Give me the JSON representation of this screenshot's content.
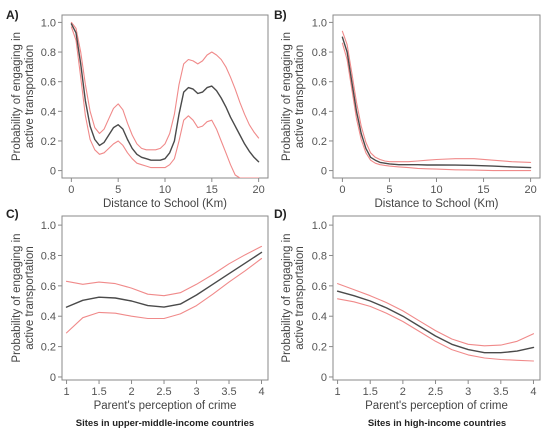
{
  "chart_data": [
    {
      "panel": "A)",
      "type": "line",
      "xlabel": "Distance to School (Km)",
      "ylabel": "Probability of engaging in active transportation",
      "ylabel_lines": [
        "Probability of engaging in",
        "active transportation"
      ],
      "xlim": [
        -1,
        21
      ],
      "ylim": [
        -0.05,
        1.05
      ],
      "xticks": [
        0,
        5,
        10,
        15,
        20
      ],
      "yticks": [
        0,
        0.2,
        0.4,
        0.6,
        0.8,
        1.0
      ],
      "ytick_labels": [
        "0",
        "0.2",
        "0.4",
        "0.6",
        "0.8",
        "1.0"
      ],
      "caption": "",
      "grid": false,
      "series": [
        {
          "role": "estimate",
          "color": "#4a4a4a",
          "x": [
            0,
            0.5,
            1,
            1.5,
            2,
            2.5,
            3,
            3.5,
            4,
            4.5,
            5,
            5.5,
            6,
            6.5,
            7,
            7.5,
            8,
            8.5,
            9,
            9.5,
            10,
            10.5,
            11,
            11.5,
            12,
            12.5,
            13,
            13.5,
            14,
            14.5,
            15,
            15.5,
            16,
            16.5,
            17,
            17.5,
            18,
            18.5,
            19,
            19.5,
            20
          ],
          "y": [
            0.99,
            0.93,
            0.72,
            0.47,
            0.3,
            0.21,
            0.17,
            0.19,
            0.24,
            0.29,
            0.31,
            0.28,
            0.21,
            0.15,
            0.11,
            0.09,
            0.08,
            0.07,
            0.07,
            0.07,
            0.08,
            0.12,
            0.2,
            0.38,
            0.53,
            0.56,
            0.55,
            0.52,
            0.53,
            0.56,
            0.57,
            0.54,
            0.49,
            0.43,
            0.36,
            0.3,
            0.24,
            0.18,
            0.13,
            0.09,
            0.06
          ]
        },
        {
          "role": "ci-upper",
          "color": "#f08a8a",
          "x": [
            0,
            0.5,
            1,
            1.5,
            2,
            2.5,
            3,
            3.5,
            4,
            4.5,
            5,
            5.5,
            6,
            6.5,
            7,
            7.5,
            8,
            8.5,
            9,
            9.5,
            10,
            10.5,
            11,
            11.5,
            12,
            12.5,
            13,
            13.5,
            14,
            14.5,
            15,
            15.5,
            16,
            16.5,
            17,
            17.5,
            18,
            18.5,
            19,
            19.5,
            20
          ],
          "y": [
            1.0,
            0.96,
            0.8,
            0.58,
            0.4,
            0.29,
            0.25,
            0.28,
            0.35,
            0.42,
            0.45,
            0.41,
            0.32,
            0.24,
            0.18,
            0.15,
            0.14,
            0.14,
            0.14,
            0.15,
            0.18,
            0.25,
            0.38,
            0.58,
            0.72,
            0.75,
            0.74,
            0.72,
            0.74,
            0.78,
            0.8,
            0.78,
            0.75,
            0.7,
            0.63,
            0.55,
            0.46,
            0.38,
            0.31,
            0.26,
            0.22
          ]
        },
        {
          "role": "ci-lower",
          "color": "#f08a8a",
          "x": [
            0,
            0.5,
            1,
            1.5,
            2,
            2.5,
            3,
            3.5,
            4,
            4.5,
            5,
            5.5,
            6,
            6.5,
            7,
            7.5,
            8,
            8.5,
            9,
            9.5,
            10,
            10.5,
            11,
            11.5,
            12,
            12.5,
            13,
            13.5,
            14,
            14.5,
            15,
            15.5,
            16,
            16.5,
            17,
            17.5,
            18,
            18.5,
            19,
            19.5,
            20
          ],
          "y": [
            0.97,
            0.88,
            0.63,
            0.37,
            0.21,
            0.14,
            0.11,
            0.12,
            0.15,
            0.18,
            0.2,
            0.17,
            0.12,
            0.08,
            0.05,
            0.04,
            0.03,
            0.02,
            0.02,
            0.02,
            0.02,
            0.04,
            0.08,
            0.2,
            0.34,
            0.37,
            0.34,
            0.29,
            0.3,
            0.33,
            0.34,
            0.28,
            0.2,
            0.12,
            0.04,
            -0.03,
            -0.05,
            -0.05,
            -0.05,
            -0.05,
            -0.05
          ]
        }
      ]
    },
    {
      "panel": "B)",
      "type": "line",
      "xlabel": "Distance to School (Km)",
      "ylabel": "Probability of engaging in active transportation",
      "ylabel_lines": [
        "Probability of engaging in",
        "active transportation"
      ],
      "xlim": [
        -1,
        21
      ],
      "ylim": [
        -0.05,
        1.05
      ],
      "xticks": [
        0,
        5,
        10,
        15,
        20
      ],
      "yticks": [
        0,
        0.2,
        0.4,
        0.6,
        0.8,
        1.0
      ],
      "ytick_labels": [
        "0",
        "0.2",
        "0.4",
        "0.6",
        "0.8",
        "1.0"
      ],
      "caption": "",
      "grid": false,
      "series": [
        {
          "role": "estimate",
          "color": "#4a4a4a",
          "x": [
            0,
            0.5,
            1,
            1.5,
            2,
            2.5,
            3,
            3.5,
            4,
            4.5,
            5,
            6,
            7,
            8,
            9,
            10,
            12,
            14,
            16,
            18,
            20
          ],
          "y": [
            0.9,
            0.8,
            0.6,
            0.4,
            0.25,
            0.15,
            0.09,
            0.07,
            0.055,
            0.05,
            0.045,
            0.04,
            0.04,
            0.04,
            0.038,
            0.038,
            0.037,
            0.035,
            0.03,
            0.025,
            0.02
          ]
        },
        {
          "role": "ci-upper",
          "color": "#f08a8a",
          "x": [
            0,
            0.5,
            1,
            1.5,
            2,
            2.5,
            3,
            3.5,
            4,
            4.5,
            5,
            6,
            7,
            8,
            9,
            10,
            12,
            14,
            16,
            18,
            20
          ],
          "y": [
            0.94,
            0.85,
            0.66,
            0.46,
            0.3,
            0.19,
            0.12,
            0.09,
            0.075,
            0.065,
            0.06,
            0.06,
            0.06,
            0.065,
            0.07,
            0.075,
            0.08,
            0.08,
            0.07,
            0.06,
            0.055
          ]
        },
        {
          "role": "ci-lower",
          "color": "#f08a8a",
          "x": [
            0,
            0.5,
            1,
            1.5,
            2,
            2.5,
            3,
            3.5,
            4,
            4.5,
            5,
            6,
            7,
            8,
            9,
            10,
            12,
            14,
            16,
            18,
            20
          ],
          "y": [
            0.86,
            0.75,
            0.55,
            0.35,
            0.21,
            0.12,
            0.07,
            0.05,
            0.04,
            0.035,
            0.03,
            0.025,
            0.02,
            0.015,
            0.012,
            0.01,
            0.005,
            0.003,
            0.0,
            0.0,
            0.0
          ]
        }
      ]
    },
    {
      "panel": "C)",
      "type": "line",
      "xlabel": "Parent's perception of crime",
      "ylabel": "Probability of engaging in active transportation",
      "ylabel_lines": [
        "Probability of engaging in",
        "active transportation"
      ],
      "xlim": [
        0.93,
        4.1
      ],
      "ylim": [
        -0.02,
        1.06
      ],
      "xticks": [
        1,
        1.5,
        2,
        2.5,
        3,
        3.5,
        4
      ],
      "yticks": [
        0,
        0.2,
        0.4,
        0.6,
        0.8,
        1.0
      ],
      "ytick_labels": [
        "0",
        "0.2",
        "0.4",
        "0.6",
        "0.8",
        "1.0"
      ],
      "caption": "Sites in upper-middle-income countries",
      "grid": false,
      "series": [
        {
          "role": "estimate",
          "color": "#4a4a4a",
          "x": [
            1,
            1.25,
            1.5,
            1.75,
            2,
            2.25,
            2.5,
            2.75,
            3,
            3.25,
            3.5,
            3.75,
            4
          ],
          "y": [
            0.46,
            0.505,
            0.525,
            0.52,
            0.5,
            0.47,
            0.46,
            0.48,
            0.54,
            0.61,
            0.68,
            0.75,
            0.82
          ]
        },
        {
          "role": "ci-upper",
          "color": "#f08a8a",
          "x": [
            1,
            1.25,
            1.5,
            1.75,
            2,
            2.25,
            2.5,
            2.75,
            3,
            3.25,
            3.5,
            3.75,
            4
          ],
          "y": [
            0.63,
            0.61,
            0.625,
            0.615,
            0.585,
            0.545,
            0.535,
            0.555,
            0.61,
            0.675,
            0.745,
            0.805,
            0.86
          ]
        },
        {
          "role": "ci-lower",
          "color": "#f08a8a",
          "x": [
            1,
            1.25,
            1.5,
            1.75,
            2,
            2.25,
            2.5,
            2.75,
            3,
            3.25,
            3.5,
            3.75,
            4
          ],
          "y": [
            0.29,
            0.39,
            0.425,
            0.42,
            0.4,
            0.385,
            0.385,
            0.415,
            0.47,
            0.545,
            0.625,
            0.7,
            0.78
          ]
        }
      ]
    },
    {
      "panel": "D)",
      "type": "line",
      "xlabel": "Parent's perception of crime",
      "ylabel": "Probability of engaging in active transportation",
      "ylabel_lines": [
        "Probability of engaging in",
        "active transportation"
      ],
      "xlim": [
        0.93,
        4.1
      ],
      "ylim": [
        -0.02,
        1.06
      ],
      "xticks": [
        1,
        1.5,
        2,
        2.5,
        3,
        3.5,
        4
      ],
      "yticks": [
        0,
        0.2,
        0.4,
        0.6,
        0.8,
        1.0
      ],
      "ytick_labels": [
        "0",
        "0.2",
        "0.4",
        "0.6",
        "0.8",
        "1.0"
      ],
      "caption": "Sites in high-income countries",
      "grid": false,
      "series": [
        {
          "role": "estimate",
          "color": "#4a4a4a",
          "x": [
            1,
            1.25,
            1.5,
            1.75,
            2,
            2.25,
            2.5,
            2.75,
            3,
            3.25,
            3.5,
            3.75,
            4
          ],
          "y": [
            0.565,
            0.535,
            0.5,
            0.455,
            0.4,
            0.335,
            0.27,
            0.215,
            0.18,
            0.16,
            0.16,
            0.17,
            0.195
          ]
        },
        {
          "role": "ci-upper",
          "color": "#f08a8a",
          "x": [
            1,
            1.25,
            1.5,
            1.75,
            2,
            2.25,
            2.5,
            2.75,
            3,
            3.25,
            3.5,
            3.75,
            4
          ],
          "y": [
            0.615,
            0.575,
            0.535,
            0.49,
            0.435,
            0.37,
            0.305,
            0.25,
            0.215,
            0.205,
            0.21,
            0.235,
            0.285
          ]
        },
        {
          "role": "ci-lower",
          "color": "#f08a8a",
          "x": [
            1,
            1.25,
            1.5,
            1.75,
            2,
            2.25,
            2.5,
            2.75,
            3,
            3.25,
            3.5,
            3.75,
            4
          ],
          "y": [
            0.515,
            0.495,
            0.465,
            0.42,
            0.365,
            0.3,
            0.235,
            0.18,
            0.145,
            0.125,
            0.115,
            0.11,
            0.105
          ]
        }
      ]
    }
  ]
}
